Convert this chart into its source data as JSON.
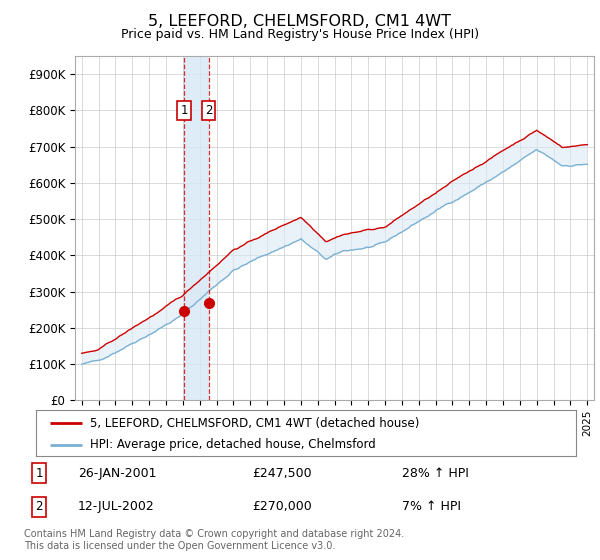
{
  "title": "5, LEEFORD, CHELMSFORD, CM1 4WT",
  "subtitle": "Price paid vs. HM Land Registry's House Price Index (HPI)",
  "ylim": [
    0,
    950000
  ],
  "yticks": [
    0,
    100000,
    200000,
    300000,
    400000,
    500000,
    600000,
    700000,
    800000,
    900000
  ],
  "ytick_labels": [
    "£0",
    "£100K",
    "£200K",
    "£300K",
    "£400K",
    "£500K",
    "£600K",
    "£700K",
    "£800K",
    "£900K"
  ],
  "sale_color": "#cc0000",
  "hpi_color": "#7ab0d4",
  "hpi_fill_color": "#dbeaf5",
  "marker1_year": 2001.07,
  "marker1_value": 247500,
  "marker2_year": 2002.54,
  "marker2_value": 270000,
  "legend_sale_label": "5, LEEFORD, CHELMSFORD, CM1 4WT (detached house)",
  "legend_hpi_label": "HPI: Average price, detached house, Chelmsford",
  "annotation1_date": "26-JAN-2001",
  "annotation1_price": "£247,500",
  "annotation1_hpi": "28% ↑ HPI",
  "annotation2_date": "12-JUL-2002",
  "annotation2_price": "£270,000",
  "annotation2_hpi": "7% ↑ HPI",
  "footer": "Contains HM Land Registry data © Crown copyright and database right 2024.\nThis data is licensed under the Open Government Licence v3.0.",
  "background_color": "#ffffff",
  "grid_color": "#cccccc"
}
